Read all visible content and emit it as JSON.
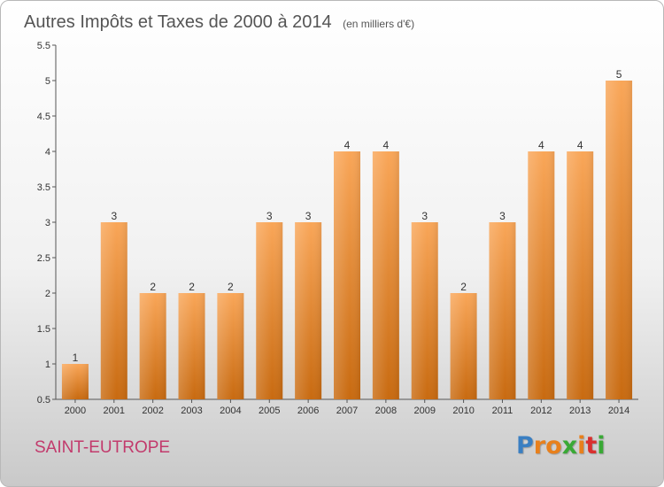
{
  "chart_data": {
    "type": "bar",
    "title": "Autres Impôts et Taxes de 2000 à 2014",
    "subtitle": "(en milliers d'€)",
    "xlabel": "",
    "ylabel": "",
    "categories": [
      "2000",
      "2001",
      "2002",
      "2003",
      "2004",
      "2005",
      "2006",
      "2007",
      "2008",
      "2009",
      "2010",
      "2011",
      "2012",
      "2013",
      "2014"
    ],
    "values": [
      1,
      3,
      2,
      2,
      2,
      3,
      3,
      4,
      4,
      3,
      2,
      3,
      4,
      4,
      5
    ],
    "data_labels": [
      "1",
      "3",
      "2",
      "2",
      "2",
      "3",
      "3",
      "4",
      "4",
      "3",
      "2",
      "3",
      "4",
      "4",
      "5"
    ],
    "ylim": [
      0.5,
      5.5
    ],
    "yticks": [
      0.5,
      1,
      1.5,
      2,
      2.5,
      3,
      3.5,
      4,
      4.5,
      5,
      5.5
    ],
    "ytick_labels": [
      "0.5",
      "1",
      "1.5",
      "2",
      "2.5",
      "3",
      "3.5",
      "4",
      "4.5",
      "5",
      "5.5"
    ],
    "grid": false,
    "bar_color": "#f28c28"
  },
  "commune": "SAINT-EUTROPE",
  "logo": {
    "letters": [
      "P",
      "r",
      "o",
      "x",
      "i",
      "t",
      "i"
    ],
    "colors": [
      "#3a7fc2",
      "#e8801c",
      "#e8801c",
      "#39a935",
      "#e8801c",
      "#d9302e",
      "#39a935"
    ]
  }
}
